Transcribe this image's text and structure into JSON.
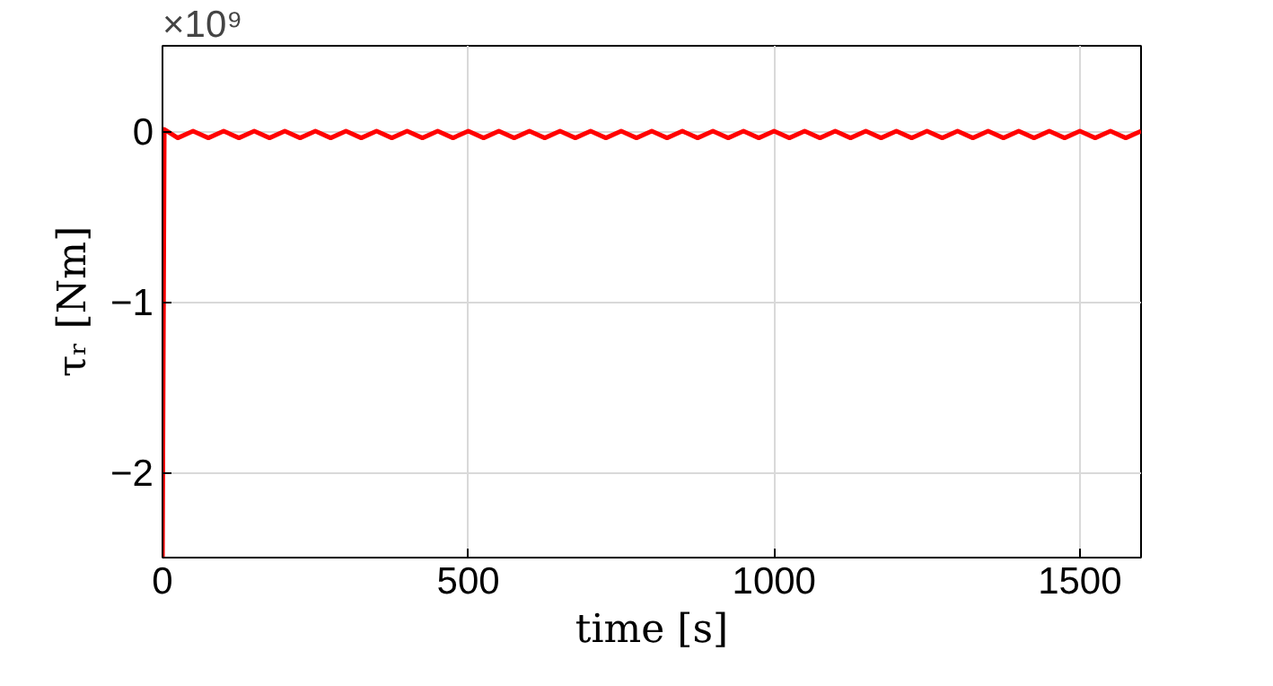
{
  "chart_data": {
    "type": "line",
    "xlabel": "time [s]",
    "ylabel": "τᵣ [Nm]",
    "annotations": [
      "×10⁹"
    ],
    "x": [
      0,
      3,
      25,
      50,
      75,
      100,
      125,
      150,
      175,
      200,
      225,
      250,
      275,
      300,
      325,
      350,
      375,
      400,
      425,
      450,
      475,
      500,
      525,
      550,
      575,
      600,
      625,
      650,
      675,
      700,
      725,
      750,
      775,
      800,
      825,
      850,
      875,
      900,
      925,
      950,
      975,
      1000,
      1025,
      1050,
      1075,
      1100,
      1125,
      1150,
      1175,
      1200,
      1225,
      1250,
      1275,
      1300,
      1325,
      1350,
      1375,
      1400,
      1425,
      1450,
      1475,
      1500,
      1525,
      1550,
      1575,
      1600
    ],
    "series": [
      {
        "color": "#ff0000",
        "values": [
          -2.5,
          0.01,
          -0.04,
          0.0,
          -0.04,
          0.0,
          -0.04,
          0.0,
          -0.04,
          0.0,
          -0.04,
          0.0,
          -0.04,
          0.0,
          -0.04,
          0.0,
          -0.04,
          0.0,
          -0.04,
          0.0,
          -0.04,
          0.0,
          -0.04,
          0.0,
          -0.04,
          0.0,
          -0.04,
          0.0,
          -0.04,
          0.0,
          -0.04,
          0.0,
          -0.04,
          0.0,
          -0.04,
          0.0,
          -0.04,
          0.0,
          -0.04,
          0.0,
          -0.04,
          0.0,
          -0.04,
          0.0,
          -0.04,
          0.0,
          -0.04,
          0.0,
          -0.04,
          0.0,
          -0.04,
          0.0,
          -0.04,
          0.0,
          -0.04,
          0.0,
          -0.04,
          0.0,
          -0.04,
          0.0,
          -0.04,
          0.0,
          -0.04,
          0.0,
          -0.04,
          0.0
        ]
      }
    ],
    "xlim": [
      0,
      1600
    ],
    "ylim": [
      -2.5,
      0.5
    ],
    "xticks": [
      0,
      500,
      1000,
      1500
    ],
    "yticks": [
      -2,
      -1,
      0
    ],
    "grid": true,
    "line_style": "solid"
  }
}
